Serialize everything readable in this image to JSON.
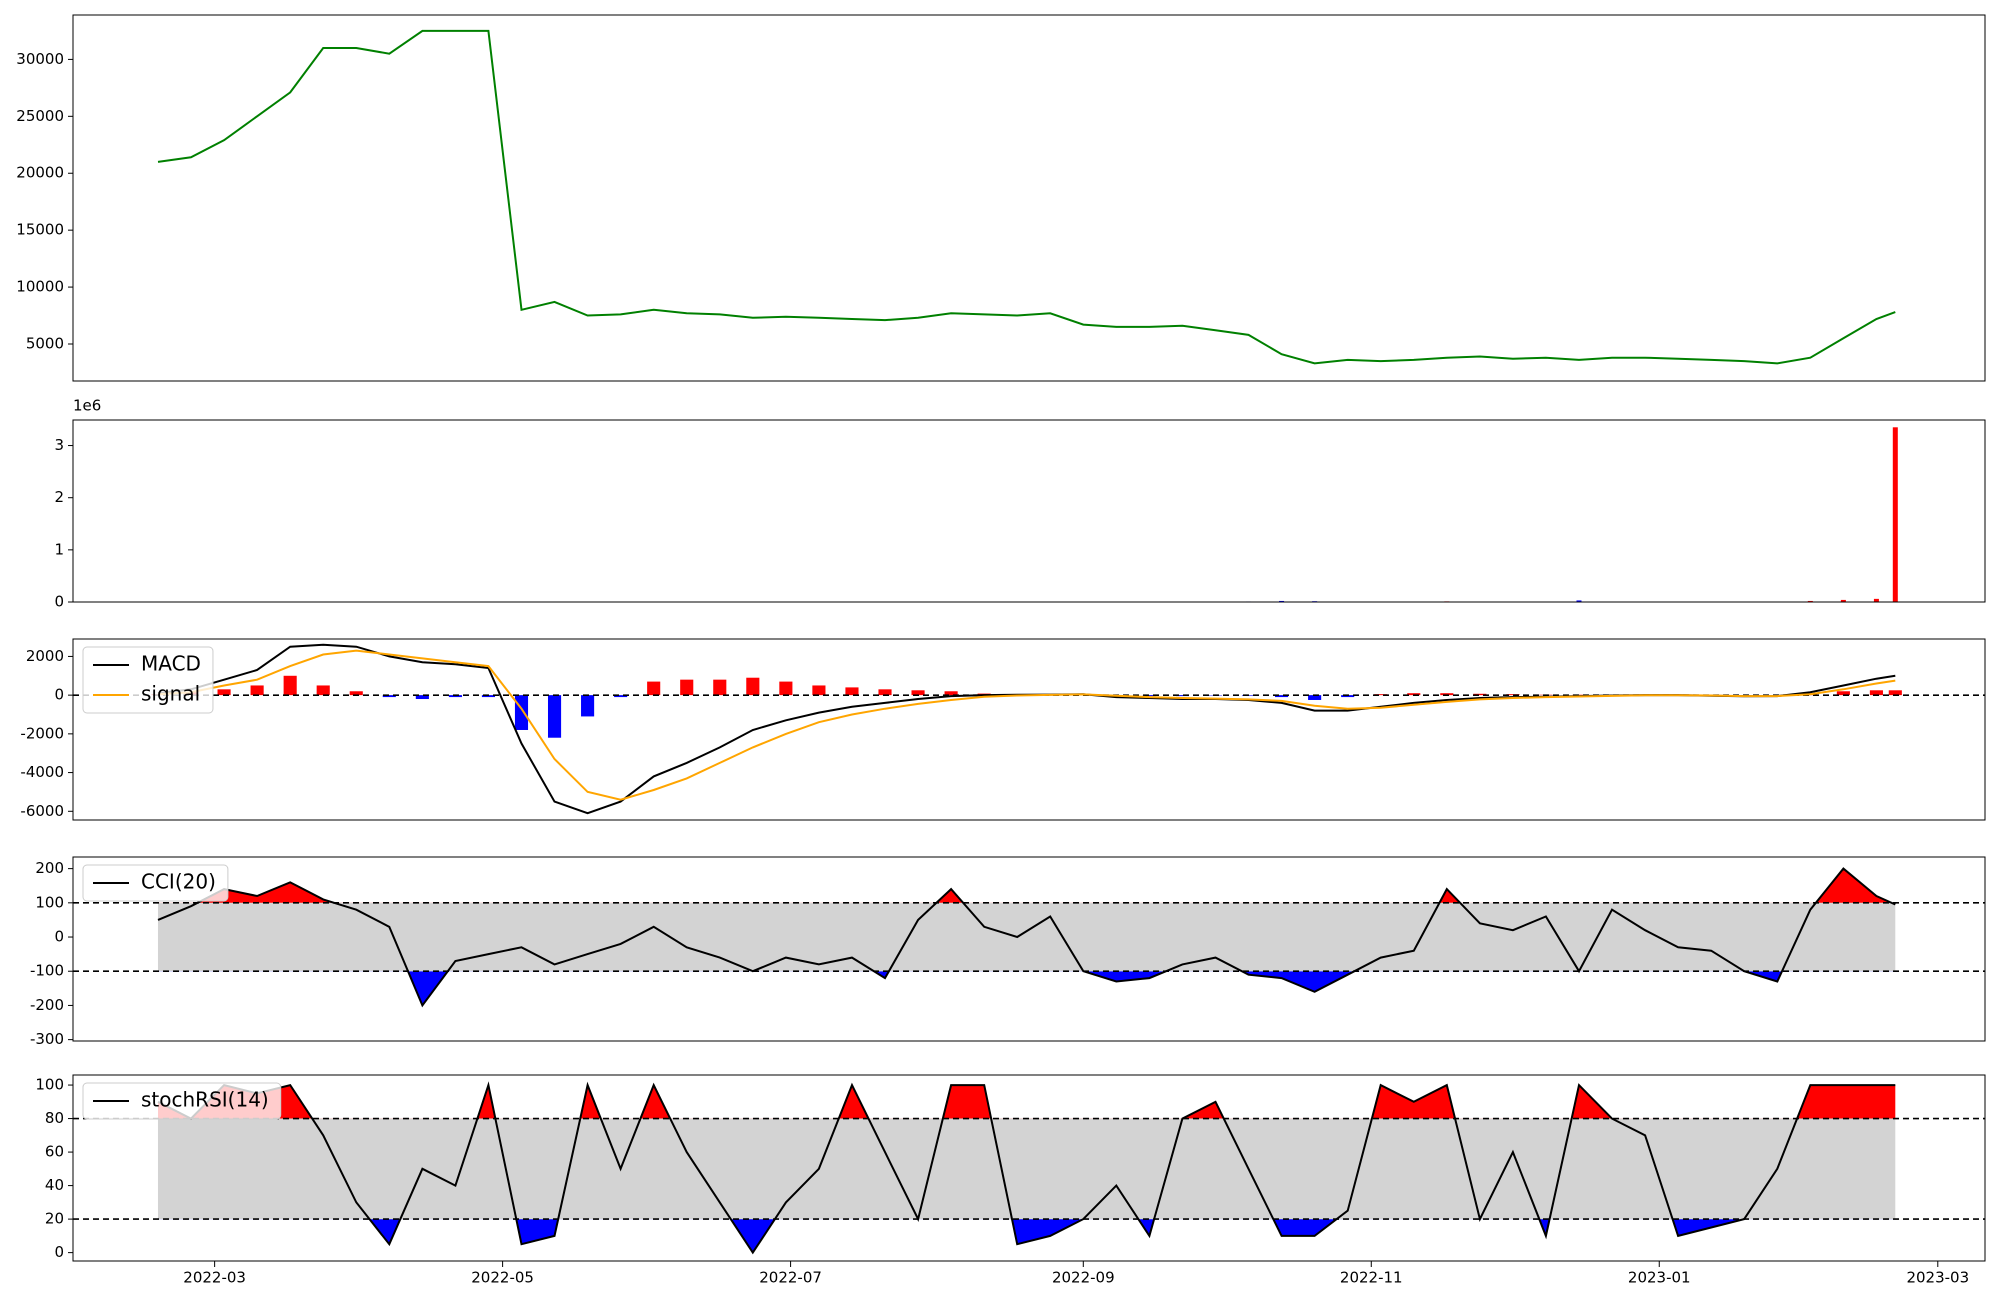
{
  "chart_data": [
    {
      "type": "line",
      "x": [
        "2022-02-17",
        "2022-02-24",
        "2022-03-03",
        "2022-03-10",
        "2022-03-17",
        "2022-03-24",
        "2022-03-31",
        "2022-04-07",
        "2022-04-14",
        "2022-04-21",
        "2022-04-28",
        "2022-05-05",
        "2022-05-12",
        "2022-05-19",
        "2022-05-26",
        "2022-06-02",
        "2022-06-09",
        "2022-06-16",
        "2022-06-23",
        "2022-06-30",
        "2022-07-07",
        "2022-07-14",
        "2022-07-21",
        "2022-07-28",
        "2022-08-04",
        "2022-08-11",
        "2022-08-18",
        "2022-08-25",
        "2022-09-01",
        "2022-09-08",
        "2022-09-15",
        "2022-09-22",
        "2022-09-29",
        "2022-10-06",
        "2022-10-13",
        "2022-10-20",
        "2022-10-27",
        "2022-11-03",
        "2022-11-10",
        "2022-11-17",
        "2022-11-24",
        "2022-12-01",
        "2022-12-08",
        "2022-12-15",
        "2022-12-22",
        "2022-12-29",
        "2023-01-05",
        "2023-01-12",
        "2023-01-19",
        "2023-01-26",
        "2023-02-02",
        "2023-02-09",
        "2023-02-16",
        "2023-02-20"
      ],
      "series": [
        {
          "color": "green",
          "values": [
            21000,
            21400,
            22900,
            25000,
            27100,
            31000,
            31000,
            30500,
            32500,
            32500,
            32500,
            8000,
            8700,
            7500,
            7600,
            8000,
            7700,
            7600,
            7300,
            7400,
            7300,
            7200,
            7100,
            7300,
            7700,
            7600,
            7500,
            7700,
            6700,
            6500,
            6500,
            6600,
            6200,
            5800,
            4100,
            3300,
            3600,
            3500,
            3600,
            3800,
            3900,
            3700,
            3800,
            3600,
            3800,
            3800,
            3700,
            3600,
            3500,
            3300,
            3800,
            5500,
            7200,
            7800
          ]
        }
      ],
      "xlim": [
        "2022-01-30",
        "2023-03-11"
      ],
      "ylim": [
        1750,
        33900
      ],
      "yticks": [
        5000,
        10000,
        15000,
        20000,
        25000,
        30000
      ]
    },
    {
      "type": "bar",
      "x": [
        "2022-02-17",
        "2022-02-24",
        "2022-03-03",
        "2022-03-10",
        "2022-03-17",
        "2022-03-24",
        "2022-03-31",
        "2022-04-07",
        "2022-04-14",
        "2022-04-21",
        "2022-04-28",
        "2022-05-05",
        "2022-05-12",
        "2022-05-19",
        "2022-05-26",
        "2022-06-02",
        "2022-06-09",
        "2022-06-16",
        "2022-06-23",
        "2022-06-30",
        "2022-07-07",
        "2022-07-14",
        "2022-07-21",
        "2022-07-28",
        "2022-08-04",
        "2022-08-11",
        "2022-08-18",
        "2022-08-25",
        "2022-09-01",
        "2022-09-08",
        "2022-09-15",
        "2022-09-22",
        "2022-09-29",
        "2022-10-06",
        "2022-10-13",
        "2022-10-20",
        "2022-10-27",
        "2022-11-03",
        "2022-11-10",
        "2022-11-17",
        "2022-11-24",
        "2022-12-01",
        "2022-12-08",
        "2022-12-15",
        "2022-12-22",
        "2022-12-29",
        "2023-01-05",
        "2023-01-12",
        "2023-01-19",
        "2023-01-26",
        "2023-02-02",
        "2023-02-09",
        "2023-02-16",
        "2023-02-20"
      ],
      "values": [
        2000,
        2000,
        2000,
        2000,
        2000,
        2000,
        2000,
        2000,
        2000,
        2000,
        2000,
        2000,
        2000,
        2000,
        2000,
        2000,
        2000,
        2000,
        2000,
        2000,
        2000,
        2000,
        2000,
        2000,
        2000,
        2000,
        2000,
        2000,
        2000,
        2000,
        2000,
        2000,
        2000,
        10000,
        20000,
        15000,
        5000,
        3000,
        4000,
        12000,
        6000,
        4000,
        5000,
        30000,
        8000,
        3000,
        3000,
        4000,
        3000,
        5000,
        20000,
        40000,
        60000,
        3350000
      ],
      "up_color": "red",
      "down_color": "blue",
      "xlim": [
        "2022-01-30",
        "2023-03-11"
      ],
      "ylim": [
        0,
        3490000
      ],
      "y_offset_label": "1e6",
      "yticks": [
        0,
        {
          "value": 1000000,
          "label": "1"
        },
        {
          "value": 2000000,
          "label": "2"
        },
        {
          "value": 3000000,
          "label": "3"
        }
      ]
    },
    {
      "type": "combo",
      "x": [
        "2022-02-17",
        "2022-02-24",
        "2022-03-03",
        "2022-03-10",
        "2022-03-17",
        "2022-03-24",
        "2022-03-31",
        "2022-04-07",
        "2022-04-14",
        "2022-04-21",
        "2022-04-28",
        "2022-05-05",
        "2022-05-12",
        "2022-05-19",
        "2022-05-26",
        "2022-06-02",
        "2022-06-09",
        "2022-06-16",
        "2022-06-23",
        "2022-06-30",
        "2022-07-07",
        "2022-07-14",
        "2022-07-21",
        "2022-07-28",
        "2022-08-04",
        "2022-08-11",
        "2022-08-18",
        "2022-08-25",
        "2022-09-01",
        "2022-09-08",
        "2022-09-15",
        "2022-09-22",
        "2022-09-29",
        "2022-10-06",
        "2022-10-13",
        "2022-10-20",
        "2022-10-27",
        "2022-11-03",
        "2022-11-10",
        "2022-11-17",
        "2022-11-24",
        "2022-12-01",
        "2022-12-08",
        "2022-12-15",
        "2022-12-22",
        "2022-12-29",
        "2023-01-05",
        "2023-01-12",
        "2023-01-19",
        "2023-01-26",
        "2023-02-02",
        "2023-02-09",
        "2023-02-16",
        "2023-02-20"
      ],
      "series": [
        {
          "name": "MACD",
          "color": "black",
          "values": [
            100,
            300,
            800,
            1300,
            2500,
            2600,
            2500,
            2000,
            1700,
            1600,
            1400,
            -2500,
            -5500,
            -6100,
            -5500,
            -4200,
            -3500,
            -2700,
            -1800,
            -1300,
            -900,
            -600,
            -400,
            -200,
            -50,
            0,
            20,
            30,
            50,
            -100,
            -150,
            -200,
            -200,
            -250,
            -400,
            -800,
            -800,
            -600,
            -400,
            -250,
            -150,
            -100,
            -80,
            -50,
            -20,
            0,
            0,
            -30,
            -60,
            -50,
            150,
            500,
            850,
            1000
          ]
        },
        {
          "name": "signal",
          "color": "orange",
          "values": [
            50,
            150,
            500,
            800,
            1500,
            2100,
            2300,
            2100,
            1900,
            1700,
            1500,
            -700,
            -3300,
            -5000,
            -5400,
            -4900,
            -4300,
            -3500,
            -2700,
            -2000,
            -1400,
            -1000,
            -700,
            -450,
            -250,
            -80,
            -20,
            10,
            40,
            -30,
            -100,
            -150,
            -180,
            -220,
            -300,
            -550,
            -700,
            -650,
            -500,
            -350,
            -220,
            -150,
            -100,
            -70,
            -40,
            -10,
            -5,
            -20,
            -50,
            -50,
            50,
            300,
            600,
            750
          ]
        }
      ],
      "histogram": {
        "pos_color": "red",
        "neg_color": "blue",
        "values": [
          50,
          150,
          300,
          500,
          1000,
          500,
          200,
          -100,
          -200,
          -100,
          -100,
          -1800,
          -2200,
          -1100,
          -100,
          700,
          800,
          800,
          900,
          700,
          500,
          400,
          300,
          250,
          200,
          80,
          40,
          20,
          10,
          -70,
          -50,
          -50,
          -20,
          -30,
          -100,
          -250,
          -100,
          50,
          100,
          100,
          70,
          50,
          20,
          20,
          20,
          10,
          5,
          -10,
          -10,
          0,
          100,
          200,
          250,
          250
        ]
      },
      "hlines": [
        0
      ],
      "legend": "upper left",
      "xlim": [
        "2022-01-30",
        "2023-03-11"
      ],
      "ylim": [
        -6450,
        2900
      ],
      "yticks": [
        -6000,
        -4000,
        -2000,
        0,
        2000
      ]
    },
    {
      "type": "band",
      "x": [
        "2022-02-17",
        "2022-02-24",
        "2022-03-03",
        "2022-03-10",
        "2022-03-17",
        "2022-03-24",
        "2022-03-31",
        "2022-04-07",
        "2022-04-14",
        "2022-04-21",
        "2022-04-28",
        "2022-05-05",
        "2022-05-12",
        "2022-05-19",
        "2022-05-26",
        "2022-06-02",
        "2022-06-09",
        "2022-06-16",
        "2022-06-23",
        "2022-06-30",
        "2022-07-07",
        "2022-07-14",
        "2022-07-21",
        "2022-07-28",
        "2022-08-04",
        "2022-08-11",
        "2022-08-18",
        "2022-08-25",
        "2022-09-01",
        "2022-09-08",
        "2022-09-15",
        "2022-09-22",
        "2022-09-29",
        "2022-10-06",
        "2022-10-13",
        "2022-10-20",
        "2022-10-27",
        "2022-11-03",
        "2022-11-10",
        "2022-11-17",
        "2022-11-24",
        "2022-12-01",
        "2022-12-08",
        "2022-12-15",
        "2022-12-22",
        "2022-12-29",
        "2023-01-05",
        "2023-01-12",
        "2023-01-19",
        "2023-01-26",
        "2023-02-02",
        "2023-02-09",
        "2023-02-16",
        "2023-02-20"
      ],
      "series": [
        {
          "name": "CCI(20)",
          "color": "black",
          "values": [
            50,
            90,
            140,
            120,
            160,
            110,
            80,
            30,
            -200,
            -70,
            -50,
            -30,
            -80,
            -50,
            -20,
            30,
            -30,
            -60,
            -100,
            -60,
            -80,
            -60,
            -120,
            50,
            140,
            30,
            0,
            60,
            -100,
            -130,
            -120,
            -80,
            -60,
            -110,
            -120,
            -160,
            -110,
            -60,
            -40,
            140,
            40,
            20,
            60,
            -100,
            80,
            20,
            -30,
            -40,
            -100,
            -130,
            80,
            200,
            120,
            95
          ]
        }
      ],
      "thresholds": [
        -100,
        100
      ],
      "band_color": "lightgray",
      "above_color": "red",
      "below_color": "blue",
      "legend": "upper left",
      "xlim": [
        "2022-01-30",
        "2023-03-11"
      ],
      "ylim": [
        -304,
        234
      ],
      "yticks": [
        -300,
        -200,
        -100,
        0,
        100,
        200
      ]
    },
    {
      "type": "band",
      "x": [
        "2022-02-17",
        "2022-02-24",
        "2022-03-03",
        "2022-03-10",
        "2022-03-17",
        "2022-03-24",
        "2022-03-31",
        "2022-04-07",
        "2022-04-14",
        "2022-04-21",
        "2022-04-28",
        "2022-05-05",
        "2022-05-12",
        "2022-05-19",
        "2022-05-26",
        "2022-06-02",
        "2022-06-09",
        "2022-06-16",
        "2022-06-23",
        "2022-06-30",
        "2022-07-07",
        "2022-07-14",
        "2022-07-21",
        "2022-07-28",
        "2022-08-04",
        "2022-08-11",
        "2022-08-18",
        "2022-08-25",
        "2022-09-01",
        "2022-09-08",
        "2022-09-15",
        "2022-09-22",
        "2022-09-29",
        "2022-10-06",
        "2022-10-13",
        "2022-10-20",
        "2022-10-27",
        "2022-11-03",
        "2022-11-10",
        "2022-11-17",
        "2022-11-24",
        "2022-12-01",
        "2022-12-08",
        "2022-12-15",
        "2022-12-22",
        "2022-12-29",
        "2023-01-05",
        "2023-01-12",
        "2023-01-19",
        "2023-01-26",
        "2023-02-02",
        "2023-02-09",
        "2023-02-16",
        "2023-02-20"
      ],
      "series": [
        {
          "name": "stochRSI(14)",
          "color": "black",
          "values": [
            90,
            80,
            100,
            95,
            100,
            70,
            30,
            5,
            50,
            40,
            100,
            5,
            10,
            100,
            50,
            100,
            60,
            30,
            0,
            30,
            50,
            100,
            60,
            20,
            100,
            100,
            5,
            10,
            20,
            40,
            10,
            80,
            90,
            50,
            10,
            10,
            25,
            100,
            90,
            100,
            20,
            60,
            10,
            100,
            80,
            70,
            10,
            15,
            20,
            50,
            100,
            100,
            100,
            100
          ]
        }
      ],
      "thresholds": [
        20,
        80
      ],
      "band_color": "lightgray",
      "above_color": "red",
      "below_color": "blue",
      "legend": "upper left",
      "xlim": [
        "2022-01-30",
        "2023-03-11"
      ],
      "ylim": [
        -5,
        106
      ],
      "yticks": [
        0,
        20,
        40,
        60,
        80,
        100
      ],
      "xticks": [
        {
          "value": "2022-03-01",
          "label": "2022-03"
        },
        {
          "value": "2022-05-01",
          "label": "2022-05"
        },
        {
          "value": "2022-07-01",
          "label": "2022-07"
        },
        {
          "value": "2022-09-01",
          "label": "2022-09"
        },
        {
          "value": "2022-11-01",
          "label": "2022-11"
        },
        {
          "value": "2023-01-01",
          "label": "2023-01"
        },
        {
          "value": "2023-03-01",
          "label": "2023-03"
        }
      ]
    }
  ]
}
